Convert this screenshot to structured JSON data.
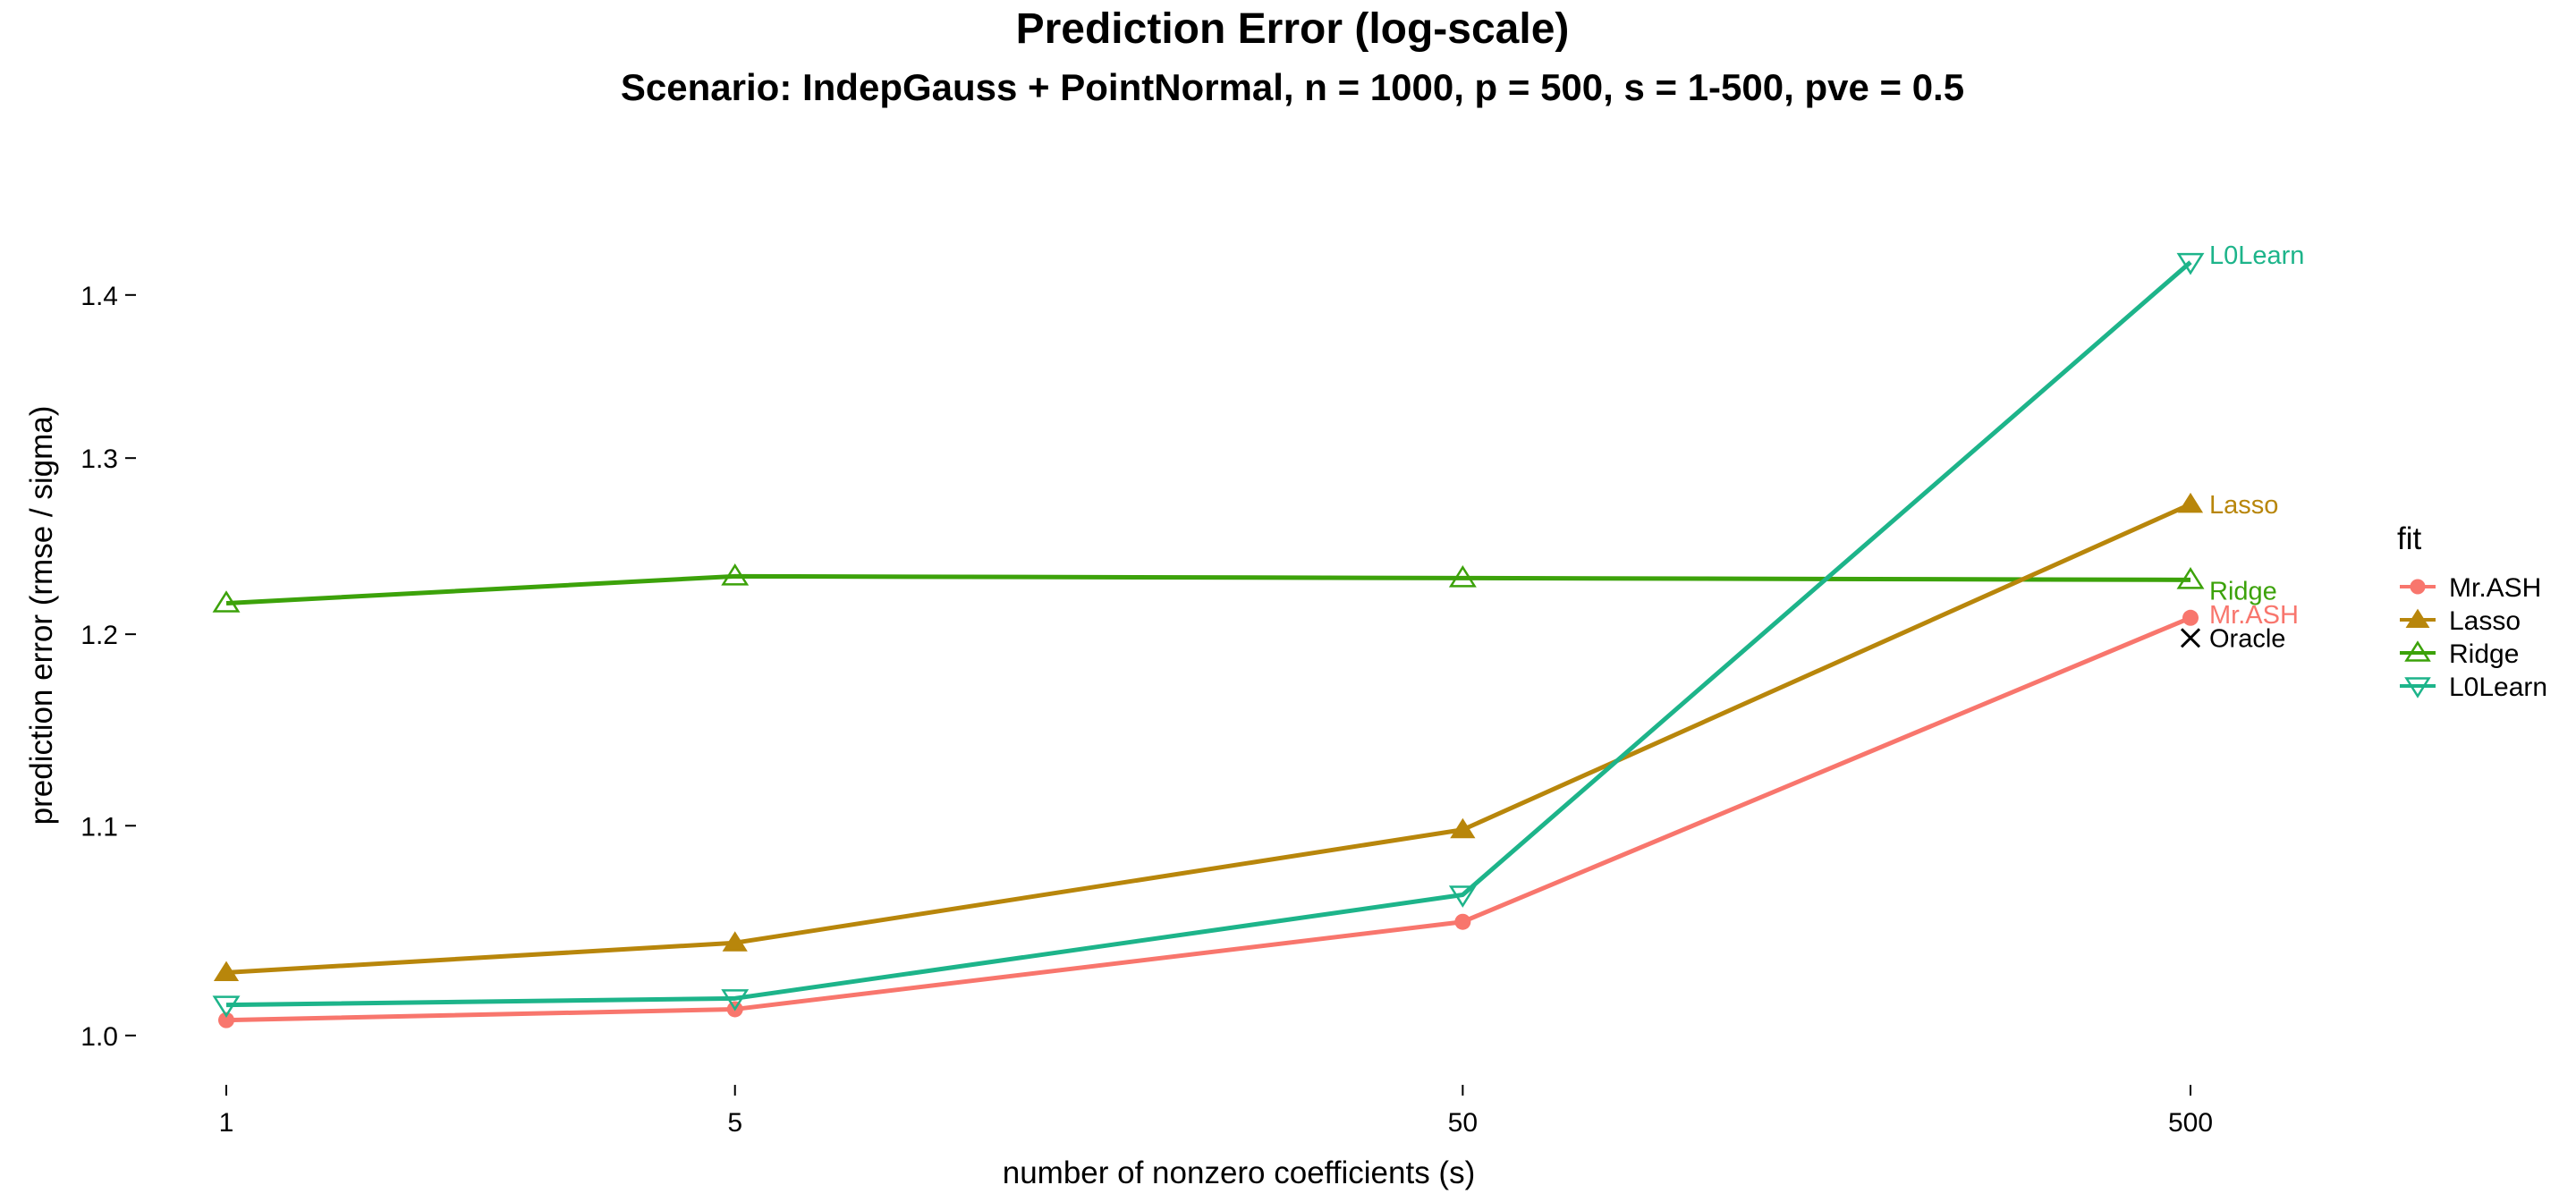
{
  "chart_data": {
    "type": "line",
    "title": "Prediction Error (log-scale)",
    "subtitle": "Scenario: IndepGauss + PointNormal, n = 1000, p = 500, s = 1-500, pve = 0.5",
    "xlabel": "number of nonzero coefficients (s)",
    "ylabel": "prediction error (rmse / sigma)",
    "x_scale": "log",
    "y_scale": "log",
    "x": [
      1,
      5,
      50,
      500
    ],
    "x_tick_labels": [
      "1",
      "5",
      "50",
      "500"
    ],
    "y_ticks": [
      1.0,
      1.1,
      1.2,
      1.3,
      1.4
    ],
    "y_tick_labels": [
      "1.0",
      "1.1",
      "1.2",
      "1.3",
      "1.4"
    ],
    "ylim": [
      0.985,
      1.455
    ],
    "grid": false,
    "legend_title": "fit",
    "legend_position": "right",
    "series": [
      {
        "name": "Mr.ASH",
        "color": "#F8766D",
        "marker": "filled-circle",
        "values": [
          1.007,
          1.012,
          1.053,
          1.209
        ]
      },
      {
        "name": "Lasso",
        "color": "#B8860B",
        "marker": "filled-triangle-up",
        "values": [
          1.029,
          1.043,
          1.098,
          1.273
        ]
      },
      {
        "name": "Ridge",
        "color": "#3CA20A",
        "marker": "open-triangle-up",
        "values": [
          1.217,
          1.232,
          1.231,
          1.23
        ]
      },
      {
        "name": "L0Learn",
        "color": "#1DB48A",
        "marker": "open-triangle-down",
        "values": [
          1.014,
          1.017,
          1.066,
          1.421
        ]
      }
    ],
    "annotations": [
      {
        "text": "L0Learn",
        "series": "L0Learn"
      },
      {
        "text": "Lasso",
        "series": "Lasso"
      },
      {
        "text": "Ridge",
        "series": "Ridge"
      },
      {
        "text": "Mr.ASH",
        "series": "Mr.ASH"
      },
      {
        "text": "Oracle",
        "marker": "x",
        "color": "#000000",
        "x": 500,
        "y": 1.198
      }
    ]
  }
}
